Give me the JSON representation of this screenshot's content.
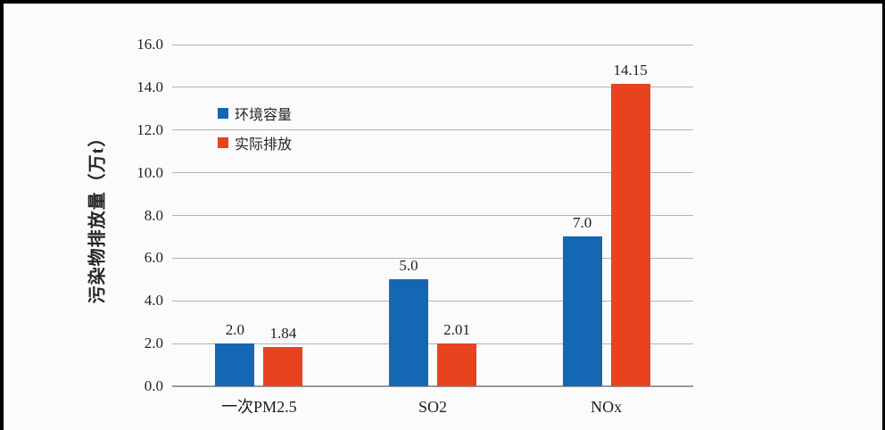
{
  "frame": {
    "background": "#fbfbfb",
    "edge_color": "#000000"
  },
  "chart_data": {
    "type": "bar",
    "title": "",
    "categories": [
      "一次PM2.5",
      "SO2",
      "NOx"
    ],
    "series": [
      {
        "name": "环境容量",
        "color": "#1467b2",
        "values": [
          2.0,
          5.0,
          7.0
        ],
        "value_labels": [
          "2.0",
          "5.0",
          "7.0"
        ]
      },
      {
        "name": "实际排放",
        "color": "#e8421e",
        "values": [
          1.84,
          2.01,
          14.15
        ],
        "value_labels": [
          "1.84",
          "2.01",
          "14.15"
        ]
      }
    ],
    "xlabel": "",
    "ylabel": "污染物排放量（万t）",
    "ylim": [
      0,
      16
    ],
    "ytick_interval": 2,
    "ytick_labels": [
      "0.0",
      "2.0",
      "4.0",
      "6.0",
      "8.0",
      "10.0",
      "12.0",
      "14.0",
      "16.0"
    ],
    "grid": true,
    "gridline_color": "#b3b3b3",
    "baseline_color": "#9a9a9a",
    "text_color": "#1f1f1f",
    "legend_position": "inside-upper-left"
  }
}
